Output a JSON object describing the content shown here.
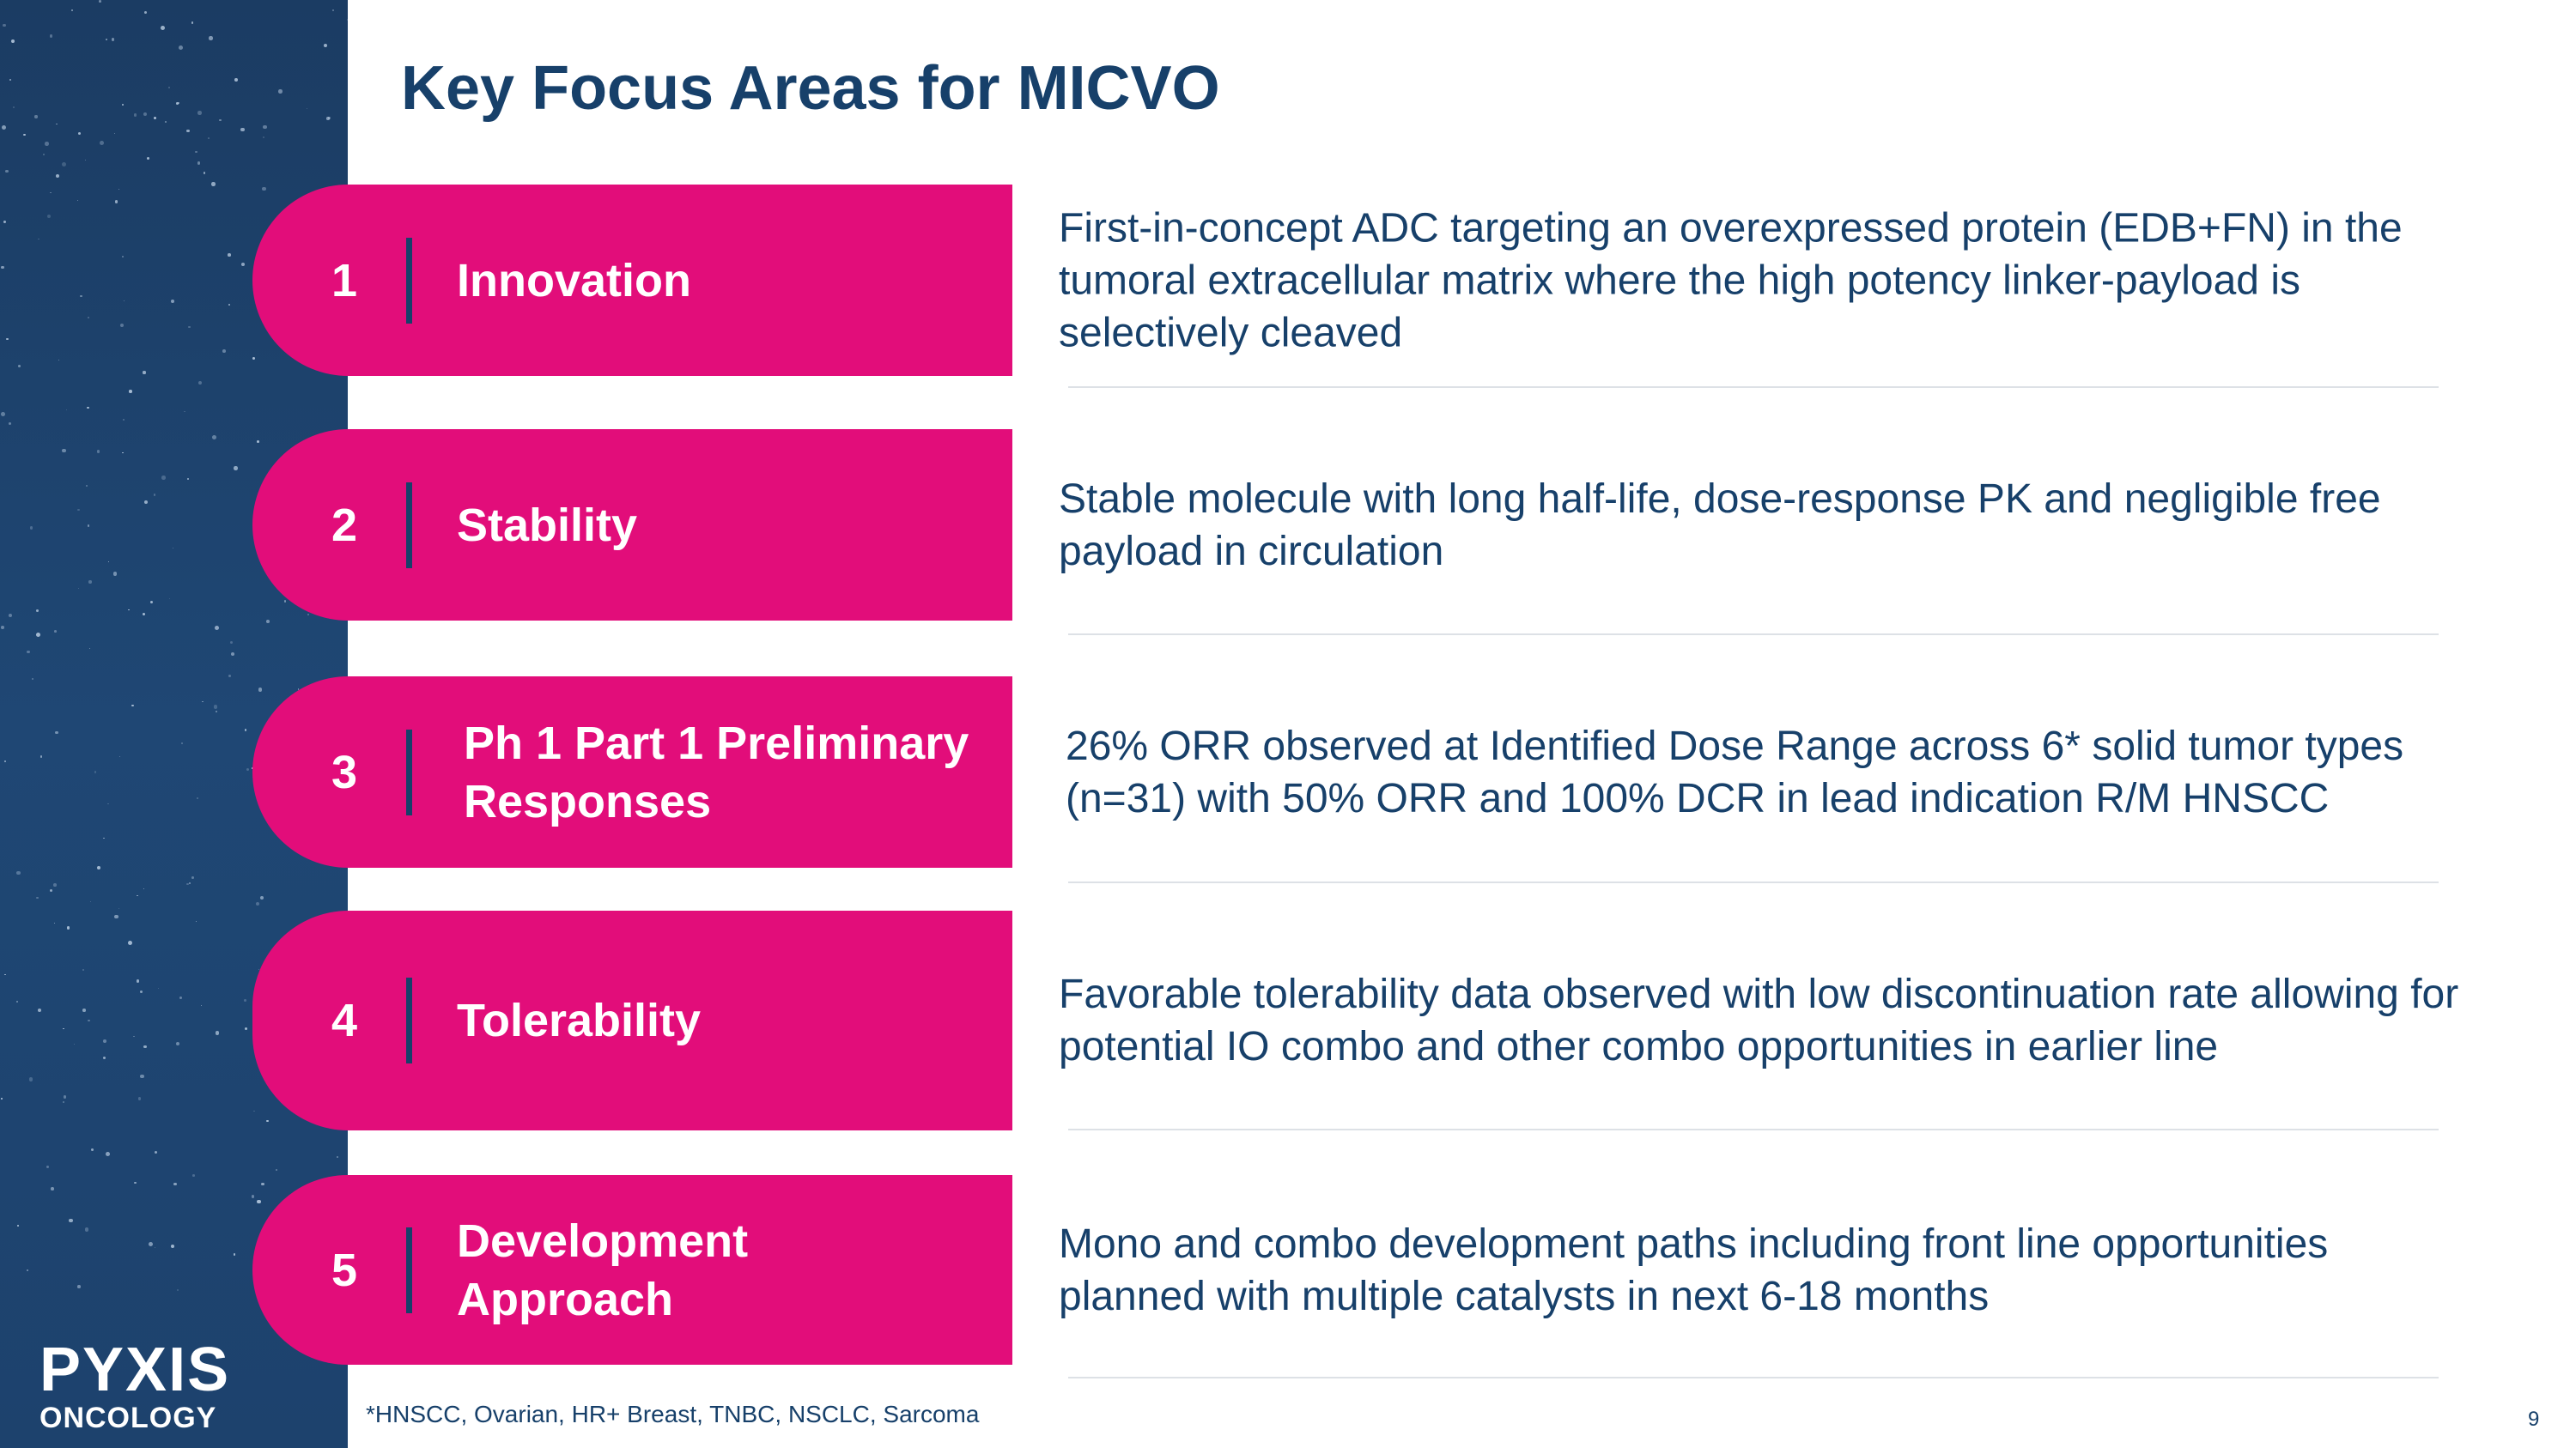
{
  "title": "Key Focus Areas for MICVO",
  "brand": {
    "line1": "PYXIS",
    "line2": "ONCOLOGY"
  },
  "colors": {
    "accent": "#e20d7a",
    "navy": "#17406a",
    "sidebar": "#1d426d"
  },
  "items": [
    {
      "number": "1",
      "label": "Innovation",
      "description": "First-in-concept ADC targeting an overexpressed protein (EDB+FN) in the tumoral extracellular matrix where the high potency linker-payload is selectively cleaved"
    },
    {
      "number": "2",
      "label": "Stability",
      "description": "Stable molecule with long half-life, dose-response PK and negligible free payload in circulation"
    },
    {
      "number": "3",
      "label": "Ph 1 Part 1 Preliminary Responses",
      "description": "26% ORR observed at Identified Dose Range across 6* solid tumor types (n=31) with 50% ORR and 100% DCR in lead indication R/M HNSCC"
    },
    {
      "number": "4",
      "label": "Tolerability",
      "description": "Favorable tolerability data observed with low discontinuation rate allowing for potential IO combo and other combo opportunities in earlier line"
    },
    {
      "number": "5",
      "label": "Development Approach",
      "description": "Mono and combo development paths including front line opportunities planned with multiple catalysts in next 6-18 months"
    }
  ],
  "footnote": "*HNSCC, Ovarian, HR+ Breast, TNBC, NSCLC, Sarcoma",
  "page_number": "9"
}
